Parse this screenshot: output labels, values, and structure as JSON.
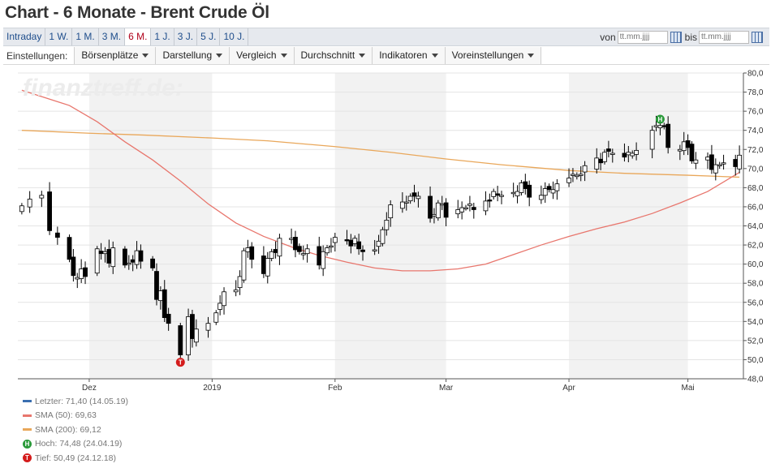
{
  "page_title": "Chart - 6 Monate - Brent Crude Öl",
  "tabs": [
    {
      "label": "Intraday"
    },
    {
      "label": "1 W."
    },
    {
      "label": "1 M."
    },
    {
      "label": "3 M."
    },
    {
      "label": "6 M.",
      "active": true
    },
    {
      "label": "1 J."
    },
    {
      "label": "3 J."
    },
    {
      "label": "5 J."
    },
    {
      "label": "10 J."
    }
  ],
  "range": {
    "from_label": "von",
    "from_placeholder": "tt.mm.jjjj",
    "to_label": "bis",
    "to_placeholder": "tt.mm.jjjj"
  },
  "settings": {
    "label": "Einstellungen:",
    "menus": [
      "Börsenplätze",
      "Darstellung",
      "Vergleich",
      "Durchschnitt",
      "Indikatoren",
      "Voreinstellungen"
    ]
  },
  "watermark": "finanztreff.de:",
  "legend": {
    "last": "Letzter: 71,40 (14.05.19)",
    "sma50": "SMA (50): 69,63",
    "sma200": "SMA (200): 69,12",
    "high": "Hoch: 74,48 (24.04.19)",
    "low": "Tief: 50,49 (24.12.18)"
  },
  "markers": {
    "high_symbol": "H",
    "low_symbol": "T"
  },
  "colors": {
    "last": "#3a6fb0",
    "sma50": "#e8766d",
    "sma200": "#e9a75a",
    "high": "#2a9a3a",
    "low": "#d41c1c",
    "up": "#ffffff",
    "down": "#000000",
    "shade": "#f2f2f2"
  },
  "chart_data": {
    "type": "candlestick",
    "x_labels": [
      {
        "label": "Dez",
        "date": "2018-12-01"
      },
      {
        "label": "2019",
        "date": "2019-01-01"
      },
      {
        "label": "Feb",
        "date": "2019-02-01"
      },
      {
        "label": "Mar",
        "date": "2019-03-01"
      },
      {
        "label": "Apr",
        "date": "2019-04-01"
      },
      {
        "label": "Mai",
        "date": "2019-05-01"
      }
    ],
    "x_range": [
      "2018-11-14",
      "2019-05-14"
    ],
    "ylim": [
      48,
      80
    ],
    "y_ticks": [
      "48,0",
      "50,0",
      "52,0",
      "54,0",
      "56,0",
      "58,0",
      "60,0",
      "62,0",
      "64,0",
      "66,0",
      "68,0",
      "70,0",
      "72,0",
      "74,0",
      "76,0",
      "78,0",
      "80,0"
    ],
    "y_tick_values": [
      48,
      50,
      52,
      54,
      56,
      58,
      60,
      62,
      64,
      66,
      68,
      70,
      72,
      74,
      76,
      78,
      80
    ],
    "close_path": [
      [
        "2018-11-14",
        66.1
      ],
      [
        "2018-11-16",
        66.8
      ],
      [
        "2018-11-19",
        67.2
      ],
      [
        "2018-11-21",
        63.5
      ],
      [
        "2018-11-23",
        62.8
      ],
      [
        "2018-11-26",
        60.5
      ],
      [
        "2018-11-27",
        58.8
      ],
      [
        "2018-11-28",
        58.6
      ],
      [
        "2018-11-29",
        59.5
      ],
      [
        "2018-11-30",
        58.7
      ],
      [
        "2018-12-03",
        61.6
      ],
      [
        "2018-12-04",
        61.1
      ],
      [
        "2018-12-05",
        61.3
      ],
      [
        "2018-12-06",
        60.1
      ],
      [
        "2018-12-07",
        61.7
      ],
      [
        "2018-12-10",
        59.9
      ],
      [
        "2018-12-11",
        60.1
      ],
      [
        "2018-12-12",
        60.2
      ],
      [
        "2018-12-13",
        61.4
      ],
      [
        "2018-12-14",
        60.3
      ],
      [
        "2018-12-17",
        59.6
      ],
      [
        "2018-12-18",
        56.3
      ],
      [
        "2018-12-19",
        57.2
      ],
      [
        "2018-12-20",
        54.4
      ],
      [
        "2018-12-21",
        53.8
      ],
      [
        "2018-12-24",
        50.5
      ],
      [
        "2018-12-26",
        54.5
      ],
      [
        "2018-12-27",
        52.2
      ],
      [
        "2018-12-28",
        53.2
      ],
      [
        "2018-12-31",
        53.8
      ],
      [
        "2019-01-02",
        54.9
      ],
      [
        "2019-01-03",
        55.9
      ],
      [
        "2019-01-04",
        57.1
      ],
      [
        "2019-01-07",
        57.3
      ],
      [
        "2019-01-08",
        58.7
      ],
      [
        "2019-01-09",
        61.4
      ],
      [
        "2019-01-10",
        61.7
      ],
      [
        "2019-01-11",
        60.5
      ],
      [
        "2019-01-14",
        59.0
      ],
      [
        "2019-01-15",
        60.6
      ],
      [
        "2019-01-16",
        61.3
      ],
      [
        "2019-01-17",
        61.2
      ],
      [
        "2019-01-18",
        62.7
      ],
      [
        "2019-01-21",
        62.7
      ],
      [
        "2019-01-22",
        61.5
      ],
      [
        "2019-01-23",
        61.3
      ],
      [
        "2019-01-24",
        61.1
      ],
      [
        "2019-01-25",
        61.6
      ],
      [
        "2019-01-28",
        59.9
      ],
      [
        "2019-01-29",
        61.3
      ],
      [
        "2019-01-30",
        61.7
      ],
      [
        "2019-01-31",
        61.9
      ],
      [
        "2019-02-01",
        62.8
      ],
      [
        "2019-02-04",
        62.5
      ],
      [
        "2019-02-05",
        61.9
      ],
      [
        "2019-02-06",
        62.7
      ],
      [
        "2019-02-07",
        61.6
      ],
      [
        "2019-02-08",
        61.3
      ],
      [
        "2019-02-11",
        61.5
      ],
      [
        "2019-02-12",
        62.4
      ],
      [
        "2019-02-13",
        63.6
      ],
      [
        "2019-02-14",
        64.6
      ],
      [
        "2019-02-15",
        66.2
      ],
      [
        "2019-02-18",
        66.5
      ],
      [
        "2019-02-19",
        66.5
      ],
      [
        "2019-02-20",
        67.1
      ],
      [
        "2019-02-21",
        67.1
      ],
      [
        "2019-02-22",
        67.1
      ],
      [
        "2019-02-25",
        64.8
      ],
      [
        "2019-02-26",
        65.2
      ],
      [
        "2019-02-27",
        66.4
      ],
      [
        "2019-02-28",
        66.3
      ],
      [
        "2019-03-01",
        64.9
      ],
      [
        "2019-03-04",
        65.7
      ],
      [
        "2019-03-05",
        65.9
      ],
      [
        "2019-03-06",
        65.9
      ],
      [
        "2019-03-07",
        66.3
      ],
      [
        "2019-03-08",
        65.7
      ],
      [
        "2019-03-11",
        66.6
      ],
      [
        "2019-03-12",
        66.7
      ],
      [
        "2019-03-13",
        67.6
      ],
      [
        "2019-03-14",
        67.2
      ],
      [
        "2019-03-15",
        67.2
      ],
      [
        "2019-03-18",
        67.5
      ],
      [
        "2019-03-19",
        67.6
      ],
      [
        "2019-03-20",
        68.5
      ],
      [
        "2019-03-21",
        67.9
      ],
      [
        "2019-03-22",
        67.0
      ],
      [
        "2019-03-25",
        67.2
      ],
      [
        "2019-03-26",
        67.9
      ],
      [
        "2019-03-27",
        67.8
      ],
      [
        "2019-03-28",
        67.8
      ],
      [
        "2019-03-29",
        68.4
      ],
      [
        "2019-04-01",
        69.0
      ],
      [
        "2019-04-02",
        69.4
      ],
      [
        "2019-04-03",
        69.3
      ],
      [
        "2019-04-04",
        69.4
      ],
      [
        "2019-04-05",
        70.3
      ],
      [
        "2019-04-08",
        71.1
      ],
      [
        "2019-04-09",
        70.6
      ],
      [
        "2019-04-10",
        71.7
      ],
      [
        "2019-04-11",
        71.8
      ],
      [
        "2019-04-12",
        71.6
      ],
      [
        "2019-04-15",
        71.2
      ],
      [
        "2019-04-16",
        71.7
      ],
      [
        "2019-04-17",
        71.6
      ],
      [
        "2019-04-18",
        71.9
      ],
      [
        "2019-04-22",
        74.0
      ],
      [
        "2019-04-23",
        74.5
      ],
      [
        "2019-04-24",
        74.5
      ],
      [
        "2019-04-25",
        74.4
      ],
      [
        "2019-04-26",
        72.2
      ],
      [
        "2019-04-29",
        72.0
      ],
      [
        "2019-04-30",
        72.8
      ],
      [
        "2019-05-01",
        72.2
      ],
      [
        "2019-05-02",
        70.8
      ],
      [
        "2019-05-03",
        70.9
      ],
      [
        "2019-05-06",
        71.2
      ],
      [
        "2019-05-07",
        69.9
      ],
      [
        "2019-05-08",
        70.4
      ],
      [
        "2019-05-09",
        70.4
      ],
      [
        "2019-05-10",
        70.6
      ],
      [
        "2019-05-13",
        70.2
      ],
      [
        "2019-05-14",
        71.4
      ]
    ],
    "sma50": [
      [
        "2018-11-14",
        78.2
      ],
      [
        "2018-11-26",
        76.6
      ],
      [
        "2018-12-03",
        74.9
      ],
      [
        "2018-12-10",
        72.8
      ],
      [
        "2018-12-17",
        70.9
      ],
      [
        "2018-12-24",
        68.7
      ],
      [
        "2018-12-31",
        66.3
      ],
      [
        "2019-01-07",
        64.3
      ],
      [
        "2019-01-14",
        62.9
      ],
      [
        "2019-01-21",
        61.8
      ],
      [
        "2019-01-28",
        60.9
      ],
      [
        "2019-02-04",
        60.2
      ],
      [
        "2019-02-11",
        59.6
      ],
      [
        "2019-02-18",
        59.3
      ],
      [
        "2019-02-25",
        59.3
      ],
      [
        "2019-03-04",
        59.5
      ],
      [
        "2019-03-11",
        60.0
      ],
      [
        "2019-03-18",
        61.0
      ],
      [
        "2019-03-25",
        62.0
      ],
      [
        "2019-04-01",
        62.9
      ],
      [
        "2019-04-08",
        63.7
      ],
      [
        "2019-04-15",
        64.4
      ],
      [
        "2019-04-22",
        65.3
      ],
      [
        "2019-04-29",
        66.4
      ],
      [
        "2019-05-06",
        67.6
      ],
      [
        "2019-05-14",
        69.6
      ]
    ],
    "sma200": [
      [
        "2018-11-14",
        74.0
      ],
      [
        "2018-12-01",
        73.7
      ],
      [
        "2018-12-15",
        73.5
      ],
      [
        "2019-01-01",
        73.2
      ],
      [
        "2019-01-15",
        72.9
      ],
      [
        "2019-02-01",
        72.3
      ],
      [
        "2019-02-15",
        71.7
      ],
      [
        "2019-03-01",
        71.0
      ],
      [
        "2019-03-15",
        70.4
      ],
      [
        "2019-04-01",
        69.8
      ],
      [
        "2019-04-15",
        69.5
      ],
      [
        "2019-05-01",
        69.3
      ],
      [
        "2019-05-14",
        69.1
      ]
    ],
    "high_marker": {
      "date": "2019-04-24",
      "value": 74.48
    },
    "low_marker": {
      "date": "2018-12-24",
      "value": 50.49
    }
  }
}
